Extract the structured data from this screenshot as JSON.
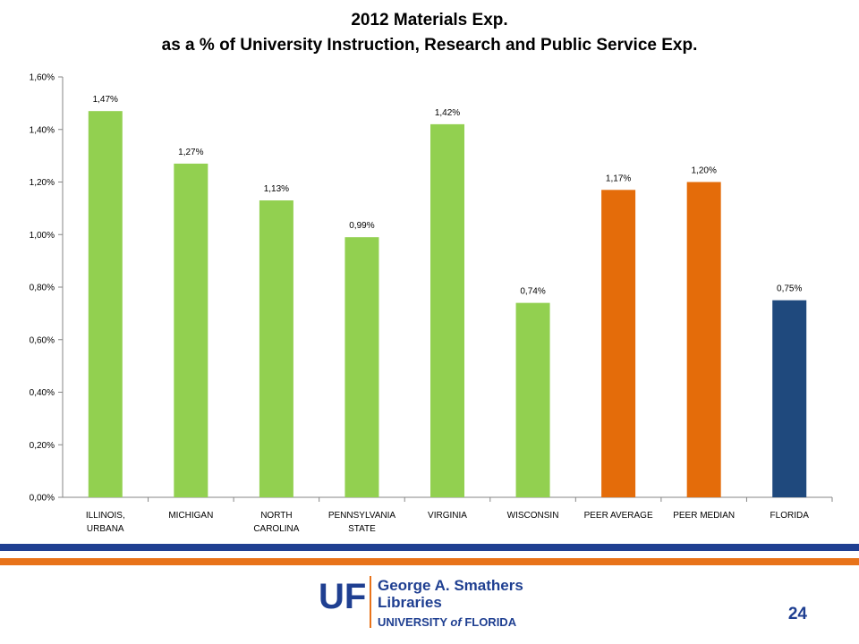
{
  "title_line1": "2012 Materials Exp.",
  "title_line2": "as a % of University Instruction, Research and Public Service Exp.",
  "chart_data": {
    "type": "bar",
    "title": "2012 Materials Exp. as a % of University Instruction, Research and Public Service Exp.",
    "categories": [
      [
        "ILLINOIS,",
        "URBANA"
      ],
      [
        "MICHIGAN"
      ],
      [
        "NORTH",
        "CAROLINA"
      ],
      [
        "PENNSYLVANIA",
        "STATE"
      ],
      [
        "VIRGINIA"
      ],
      [
        "WISCONSIN"
      ],
      [
        "PEER AVERAGE"
      ],
      [
        "PEER MEDIAN"
      ],
      [
        "FLORIDA"
      ]
    ],
    "values": [
      1.47,
      1.27,
      1.13,
      0.99,
      1.42,
      0.74,
      1.17,
      1.2,
      0.75
    ],
    "data_labels": [
      "1,47%",
      "1,27%",
      "1,13%",
      "0,99%",
      "1,42%",
      "0,74%",
      "1,17%",
      "1,20%",
      "0,75%"
    ],
    "bar_colors": [
      "#92d050",
      "#92d050",
      "#92d050",
      "#92d050",
      "#92d050",
      "#92d050",
      "#e46c0a",
      "#e46c0a",
      "#1f497d"
    ],
    "ylim": [
      0,
      1.6
    ],
    "yticks": [
      0,
      0.2,
      0.4,
      0.6,
      0.8,
      1.0,
      1.2,
      1.4,
      1.6
    ],
    "ytick_labels": [
      "0,00%",
      "0,20%",
      "0,40%",
      "0,60%",
      "0,80%",
      "1,00%",
      "1,20%",
      "1,40%",
      "1,60%"
    ],
    "grid": false,
    "legend": "none"
  },
  "footer": {
    "logo_mark": "UF",
    "logo_line1": "George A. Smathers",
    "logo_line2": "Libraries",
    "logo_line3_a": "UNIVERSITY",
    "logo_line3_b": "of",
    "logo_line3_c": "FLORIDA",
    "page_number": "24",
    "colors": {
      "blue": "#1f3f91",
      "orange": "#e8731a"
    }
  }
}
